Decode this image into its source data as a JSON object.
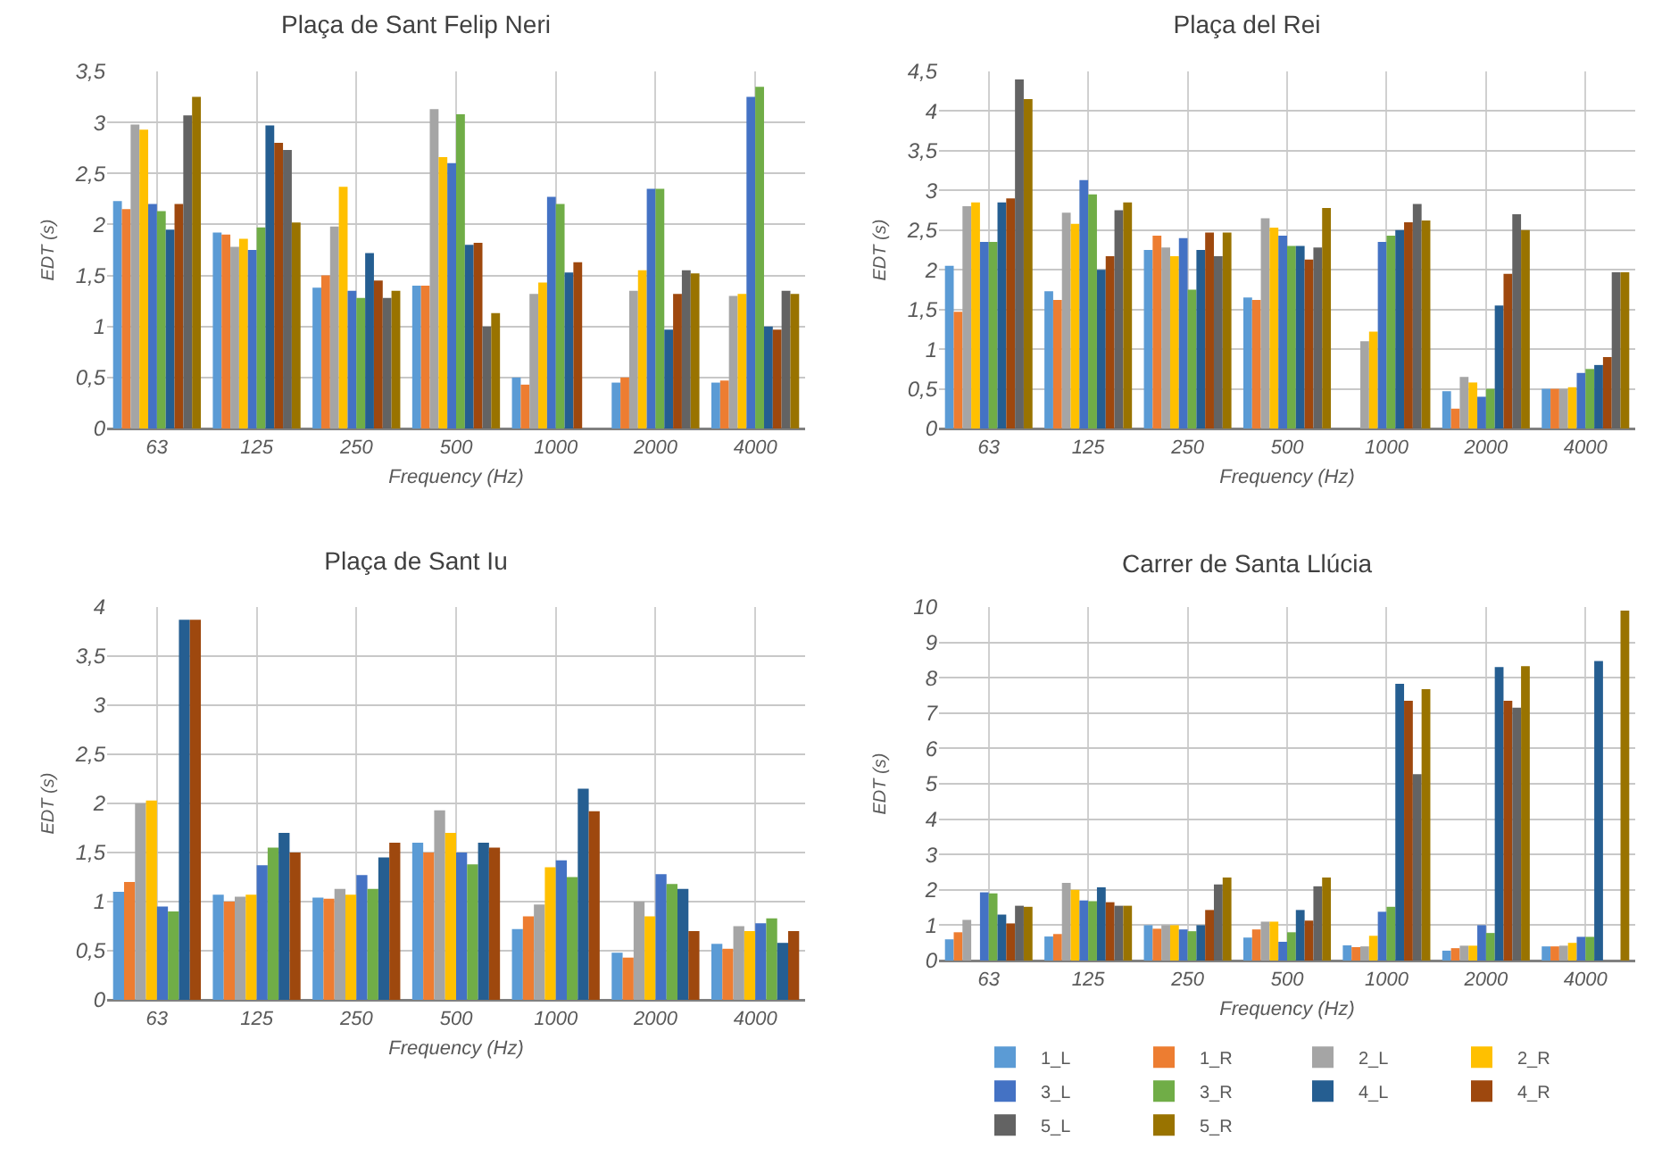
{
  "chart_data": [
    {
      "type": "bar",
      "title": "Plaça de Sant Felip Neri",
      "xlabel": "Frequency (Hz)",
      "ylabel": "EDT (s)",
      "categories": [
        "63",
        "125",
        "250",
        "500",
        "1000",
        "2000",
        "4000"
      ],
      "ylim": [
        0,
        3.5
      ],
      "yticks": [
        0,
        {
          "value": 0.5,
          "label": "0,5"
        },
        1,
        {
          "value": 1.5,
          "label": "1,5"
        },
        2,
        {
          "value": 2.5,
          "label": "2,5"
        },
        3,
        {
          "value": 3.5,
          "label": "3,5"
        }
      ],
      "grid": true,
      "legend": false,
      "series": [
        {
          "color": "#5b9bd5",
          "values": [
            2.23,
            1.92,
            1.38,
            1.4,
            0.5,
            0.45,
            0.45
          ]
        },
        {
          "color": "#ed7d31",
          "values": [
            2.15,
            1.9,
            1.5,
            1.4,
            0.43,
            0.5,
            0.47
          ]
        },
        {
          "color": "#a5a5a5",
          "values": [
            2.98,
            1.78,
            1.98,
            3.13,
            1.32,
            1.35,
            1.3
          ]
        },
        {
          "color": "#ffc000",
          "values": [
            2.93,
            1.86,
            2.37,
            2.66,
            1.43,
            1.55,
            1.32
          ]
        },
        {
          "color": "#4472c4",
          "values": [
            2.2,
            1.75,
            1.35,
            2.6,
            2.27,
            2.35,
            3.25
          ]
        },
        {
          "color": "#70ad47",
          "values": [
            2.13,
            1.97,
            1.28,
            3.08,
            2.2,
            2.35,
            3.35
          ]
        },
        {
          "color": "#255e91",
          "values": [
            1.95,
            2.97,
            1.72,
            1.8,
            1.53,
            0.97,
            1.0
          ]
        },
        {
          "color": "#9e480e",
          "values": [
            2.2,
            2.8,
            1.45,
            1.82,
            1.63,
            1.32,
            0.97
          ]
        },
        {
          "color": "#636363",
          "values": [
            3.07,
            2.73,
            1.28,
            1.0,
            null,
            1.55,
            1.35
          ]
        },
        {
          "color": "#997300",
          "values": [
            3.25,
            2.02,
            1.35,
            1.13,
            null,
            1.52,
            1.32
          ]
        }
      ]
    },
    {
      "type": "bar",
      "title": "Plaça del Rei",
      "xlabel": "Frequency (Hz)",
      "ylabel": "EDT (s)",
      "categories": [
        "63",
        "125",
        "250",
        "500",
        "1000",
        "2000",
        "4000"
      ],
      "ylim": [
        0,
        4.5
      ],
      "yticks": [
        0,
        {
          "value": 0.5,
          "label": "0,5"
        },
        1,
        {
          "value": 1.5,
          "label": "1,5"
        },
        2,
        {
          "value": 2.5,
          "label": "2,5"
        },
        3,
        {
          "value": 3.5,
          "label": "3,5"
        },
        4,
        {
          "value": 4.5,
          "label": "4,5"
        }
      ],
      "grid": true,
      "legend": false,
      "series": [
        {
          "color": "#5b9bd5",
          "values": [
            2.05,
            1.73,
            2.25,
            1.65,
            null,
            0.47,
            0.5
          ]
        },
        {
          "color": "#ed7d31",
          "values": [
            1.47,
            1.62,
            2.43,
            1.62,
            null,
            0.25,
            0.5
          ]
        },
        {
          "color": "#a5a5a5",
          "values": [
            2.8,
            2.72,
            2.28,
            2.65,
            1.1,
            0.65,
            0.5
          ]
        },
        {
          "color": "#ffc000",
          "values": [
            2.85,
            2.58,
            2.17,
            2.53,
            1.22,
            0.58,
            0.52
          ]
        },
        {
          "color": "#4472c4",
          "values": [
            2.35,
            3.13,
            2.4,
            2.43,
            2.35,
            0.4,
            0.7
          ]
        },
        {
          "color": "#70ad47",
          "values": [
            2.35,
            2.95,
            1.75,
            2.3,
            2.43,
            0.5,
            0.75
          ]
        },
        {
          "color": "#255e91",
          "values": [
            2.85,
            2.0,
            2.25,
            2.3,
            2.5,
            1.55,
            0.8
          ]
        },
        {
          "color": "#9e480e",
          "values": [
            2.9,
            2.17,
            2.47,
            2.13,
            2.6,
            1.95,
            0.9
          ]
        },
        {
          "color": "#636363",
          "values": [
            4.4,
            2.75,
            2.17,
            2.28,
            2.83,
            2.7,
            1.97
          ]
        },
        {
          "color": "#997300",
          "values": [
            4.15,
            2.85,
            2.47,
            2.78,
            2.62,
            2.5,
            1.97
          ]
        }
      ]
    },
    {
      "type": "bar",
      "title": "Plaça de Sant Iu",
      "xlabel": "Frequency (Hz)",
      "ylabel": "EDT (s)",
      "categories": [
        "63",
        "125",
        "250",
        "500",
        "1000",
        "2000",
        "4000"
      ],
      "ylim": [
        0,
        4
      ],
      "yticks": [
        0,
        {
          "value": 0.5,
          "label": "0,5"
        },
        1,
        {
          "value": 1.5,
          "label": "1,5"
        },
        2,
        {
          "value": 2.5,
          "label": "2,5"
        },
        3,
        {
          "value": 3.5,
          "label": "3,5"
        },
        4
      ],
      "grid": true,
      "legend": false,
      "series": [
        {
          "color": "#5b9bd5",
          "values": [
            1.1,
            1.07,
            1.04,
            1.6,
            0.72,
            0.48,
            0.57
          ]
        },
        {
          "color": "#ed7d31",
          "values": [
            1.2,
            1.0,
            1.03,
            1.5,
            0.85,
            0.43,
            0.52
          ]
        },
        {
          "color": "#a5a5a5",
          "values": [
            2.0,
            1.05,
            1.13,
            1.93,
            0.97,
            1.0,
            0.75
          ]
        },
        {
          "color": "#ffc000",
          "values": [
            2.03,
            1.07,
            1.07,
            1.7,
            1.35,
            0.85,
            0.7
          ]
        },
        {
          "color": "#4472c4",
          "values": [
            0.95,
            1.37,
            1.27,
            1.5,
            1.42,
            1.28,
            0.78
          ]
        },
        {
          "color": "#70ad47",
          "values": [
            0.9,
            1.55,
            1.13,
            1.38,
            1.25,
            1.18,
            0.83
          ]
        },
        {
          "color": "#255e91",
          "values": [
            3.87,
            1.7,
            1.45,
            1.6,
            2.15,
            1.13,
            0.58
          ]
        },
        {
          "color": "#9e480e",
          "values": [
            3.87,
            1.5,
            1.6,
            1.55,
            1.92,
            0.7,
            0.7
          ]
        }
      ]
    },
    {
      "type": "bar",
      "title": "Carrer de Santa Llúcia",
      "xlabel": "Frequency (Hz)",
      "ylabel": "EDT (s)",
      "categories": [
        "63",
        "125",
        "250",
        "500",
        "1000",
        "2000",
        "4000"
      ],
      "ylim": [
        0,
        10
      ],
      "yticks": [
        0,
        1,
        2,
        3,
        4,
        5,
        6,
        7,
        8,
        9,
        10
      ],
      "grid": true,
      "legend": "bottom",
      "series": [
        {
          "name": "1_L",
          "color": "#5b9bd5",
          "values": [
            0.6,
            0.68,
            1.0,
            0.65,
            0.43,
            0.28,
            0.4
          ]
        },
        {
          "name": "1_R",
          "color": "#ed7d31",
          "values": [
            0.8,
            0.75,
            0.9,
            0.88,
            0.38,
            0.35,
            0.4
          ]
        },
        {
          "name": "2_L",
          "color": "#a5a5a5",
          "values": [
            1.15,
            2.2,
            1.0,
            1.1,
            0.4,
            0.42,
            0.42
          ]
        },
        {
          "name": "2_R",
          "color": "#ffc000",
          "values": [
            null,
            2.0,
            1.0,
            1.1,
            0.7,
            0.42,
            0.5
          ]
        },
        {
          "name": "3_L",
          "color": "#4472c4",
          "values": [
            1.93,
            1.7,
            0.88,
            0.53,
            1.38,
            1.0,
            0.67
          ]
        },
        {
          "name": "3_R",
          "color": "#70ad47",
          "values": [
            1.9,
            1.68,
            0.83,
            0.8,
            1.52,
            0.78,
            0.67
          ]
        },
        {
          "name": "4_L",
          "color": "#255e91",
          "values": [
            1.3,
            2.07,
            1.0,
            1.43,
            7.83,
            8.3,
            8.47
          ]
        },
        {
          "name": "4_R",
          "color": "#9e480e",
          "values": [
            1.05,
            1.65,
            1.43,
            1.13,
            7.35,
            7.35,
            null
          ]
        },
        {
          "name": "5_L",
          "color": "#636363",
          "values": [
            1.55,
            1.55,
            2.15,
            2.1,
            5.27,
            7.15,
            null
          ]
        },
        {
          "name": "5_R",
          "color": "#997300",
          "values": [
            1.52,
            1.55,
            2.35,
            2.35,
            7.68,
            8.33,
            9.9
          ]
        }
      ]
    }
  ]
}
